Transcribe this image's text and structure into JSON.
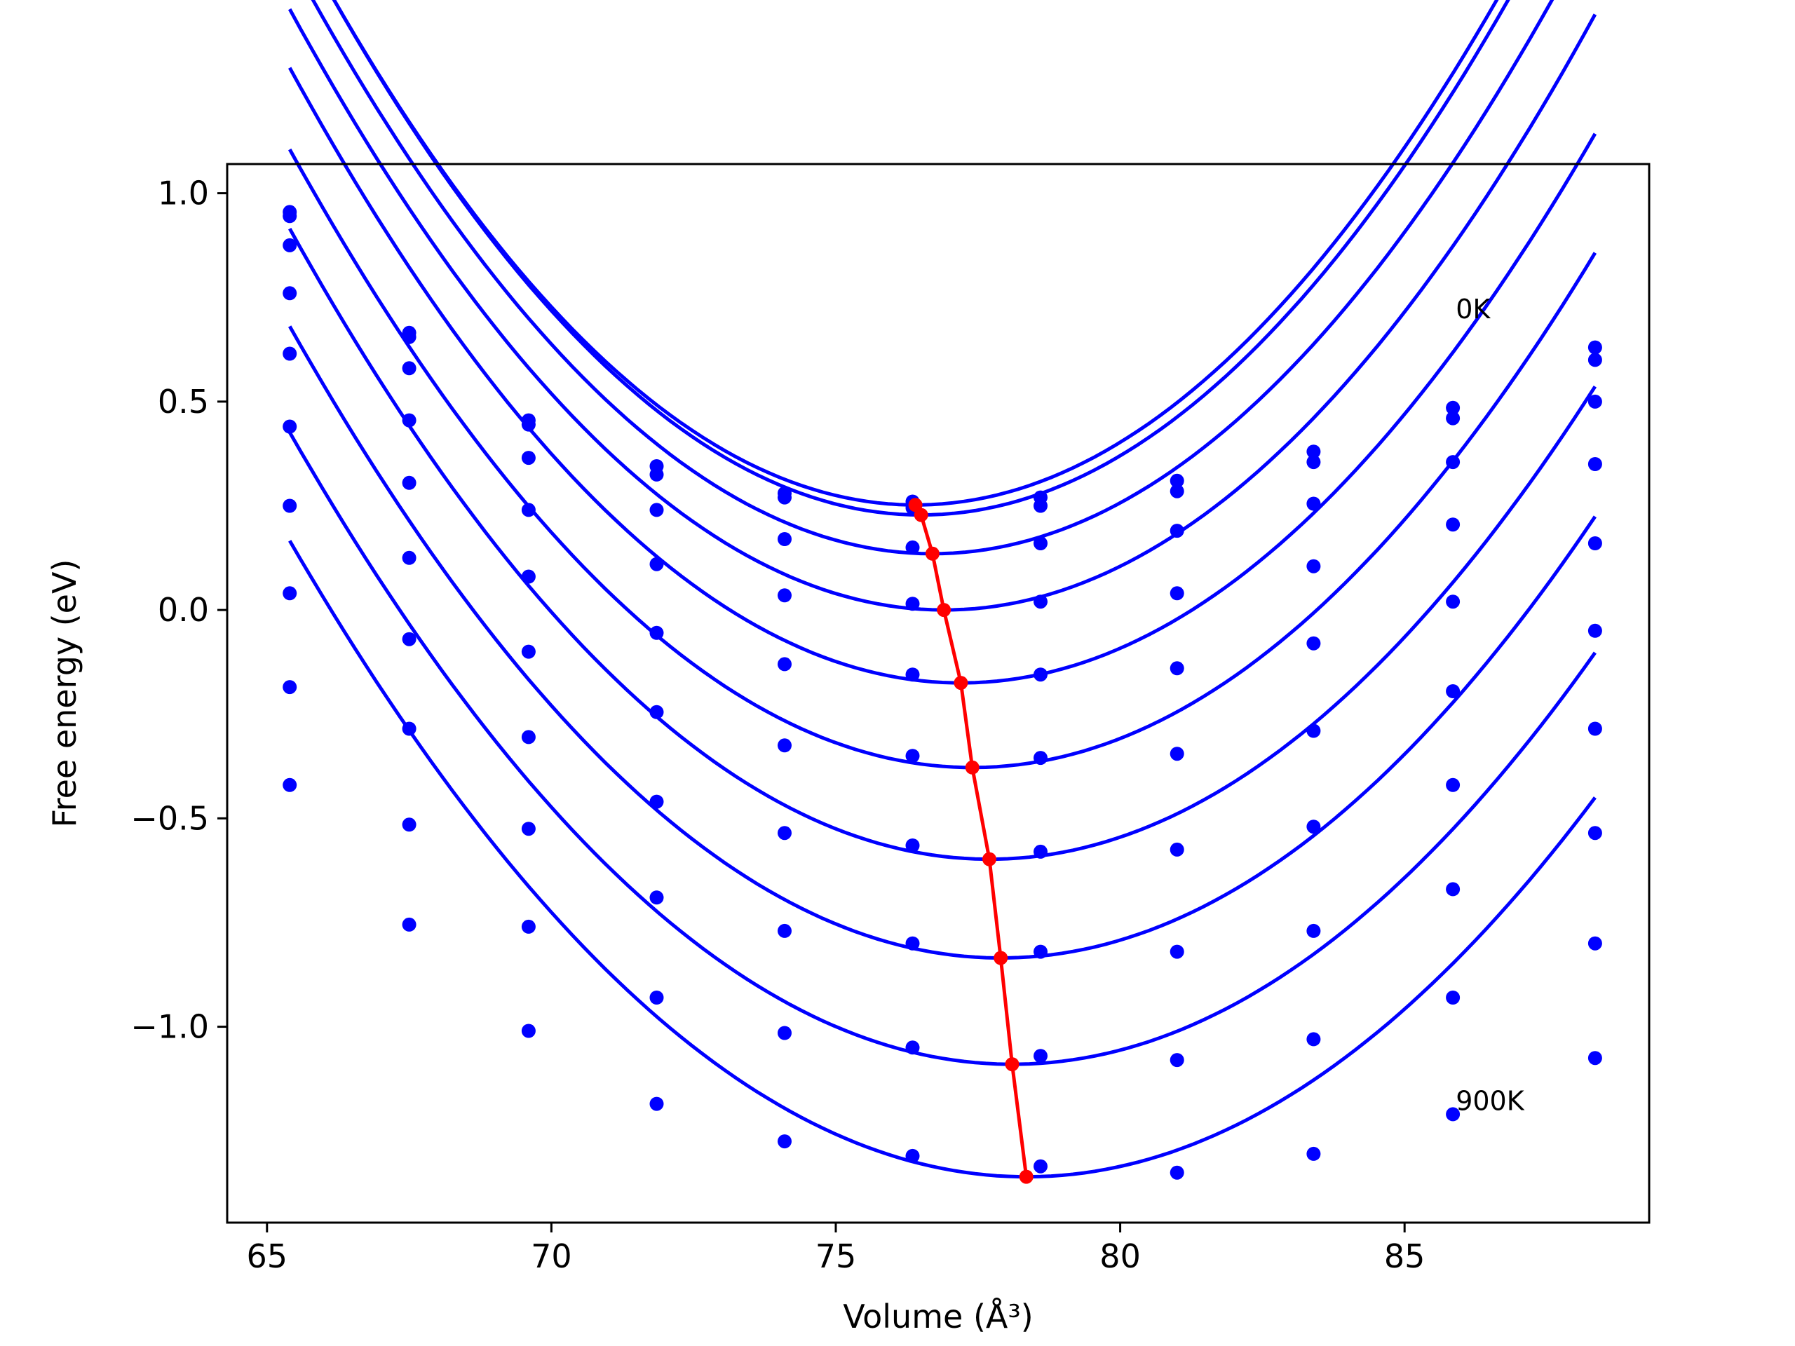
{
  "chart_data": {
    "type": "line",
    "title": "",
    "xlabel": "Volume (Å³)",
    "ylabel": "Free energy (eV)",
    "xlim": [
      64.3,
      89.3
    ],
    "ylim": [
      -1.47,
      1.07
    ],
    "grid": false,
    "xticks": [
      65,
      70,
      75,
      80,
      85
    ],
    "xtick_labels": [
      "65",
      "70",
      "75",
      "80",
      "85"
    ],
    "yticks": [
      1.0,
      0.5,
      0.0,
      -0.5,
      -1.0
    ],
    "ytick_labels": [
      "1.0",
      "0.5",
      "0.0",
      "−0.5",
      "−1.0"
    ],
    "annotations": [
      {
        "text": "0K",
        "x": 85.9,
        "y": 0.7
      },
      {
        "text": "900K",
        "x": 85.9,
        "y": -1.2
      }
    ],
    "x": [
      65.4,
      67.5,
      69.6,
      71.85,
      74.1,
      76.35,
      78.6,
      81.0,
      83.4,
      85.85,
      88.35
    ],
    "series": [
      {
        "color": "#0000ff",
        "points": [
          0.955,
          0.665,
          0.455,
          0.345,
          0.28,
          0.26,
          0.27,
          0.31,
          0.38,
          0.485,
          0.63
        ],
        "fit": {
          "a": 0.0116,
          "v0": 76.4,
          "f0": 0.252
        }
      },
      {
        "color": "#0000ff",
        "points": [
          0.945,
          0.655,
          0.445,
          0.325,
          0.27,
          0.245,
          0.25,
          0.285,
          0.355,
          0.46,
          0.6
        ],
        "fit": {
          "a": 0.0116,
          "v0": 76.5,
          "f0": 0.228
        }
      },
      {
        "color": "#0000ff",
        "points": [
          0.875,
          0.58,
          0.365,
          0.24,
          0.17,
          0.15,
          0.16,
          0.19,
          0.255,
          0.355,
          0.5
        ],
        "fit": {
          "a": 0.0112,
          "v0": 76.7,
          "f0": 0.135
        }
      },
      {
        "color": "#0000ff",
        "points": [
          0.76,
          0.455,
          0.24,
          0.11,
          0.035,
          0.015,
          0.02,
          0.04,
          0.105,
          0.205,
          0.35
        ],
        "fit": {
          "a": 0.0109,
          "v0": 76.9,
          "f0": 0.0
        }
      },
      {
        "color": "#0000ff",
        "points": [
          0.615,
          0.305,
          0.08,
          -0.055,
          -0.13,
          -0.155,
          -0.155,
          -0.14,
          -0.08,
          0.02,
          0.16
        ],
        "fit": {
          "a": 0.0106,
          "v0": 77.2,
          "f0": -0.175
        }
      },
      {
        "color": "#0000ff",
        "points": [
          0.44,
          0.125,
          -0.1,
          -0.245,
          -0.325,
          -0.35,
          -0.355,
          -0.345,
          -0.29,
          -0.195,
          -0.05
        ],
        "fit": {
          "a": 0.0103,
          "v0": 77.4,
          "f0": -0.378
        }
      },
      {
        "color": "#0000ff",
        "points": [
          0.25,
          -0.07,
          -0.305,
          -0.46,
          -0.535,
          -0.565,
          -0.58,
          -0.575,
          -0.52,
          -0.42,
          -0.285
        ],
        "fit": {
          "a": 0.01,
          "v0": 77.7,
          "f0": -0.598
        }
      },
      {
        "color": "#0000ff",
        "points": [
          0.04,
          -0.285,
          -0.525,
          -0.69,
          -0.77,
          -0.8,
          -0.82,
          -0.82,
          -0.77,
          -0.67,
          -0.535
        ],
        "fit": {
          "a": 0.0097,
          "v0": 77.9,
          "f0": -0.835
        }
      },
      {
        "color": "#0000ff",
        "points": [
          -0.185,
          -0.515,
          -0.76,
          -0.93,
          -1.015,
          -1.05,
          -1.07,
          -1.08,
          -1.03,
          -0.93,
          -0.8
        ],
        "fit": {
          "a": 0.0094,
          "v0": 78.1,
          "f0": -1.09
        }
      },
      {
        "color": "#0000ff",
        "points": [
          -0.42,
          -0.755,
          -1.01,
          -1.185,
          -1.275,
          -1.31,
          -1.335,
          -1.35,
          -1.305,
          -1.21,
          -1.075
        ],
        "fit": {
          "a": 0.0091,
          "v0": 78.35,
          "f0": -1.36
        }
      }
    ],
    "minima": {
      "color": "#ff0000",
      "x": [
        76.4,
        76.5,
        76.7,
        76.9,
        77.2,
        77.4,
        77.7,
        77.9,
        78.1,
        78.35
      ],
      "y": [
        0.252,
        0.228,
        0.135,
        0.0,
        -0.175,
        -0.378,
        -0.598,
        -0.835,
        -1.09,
        -1.36
      ]
    }
  }
}
